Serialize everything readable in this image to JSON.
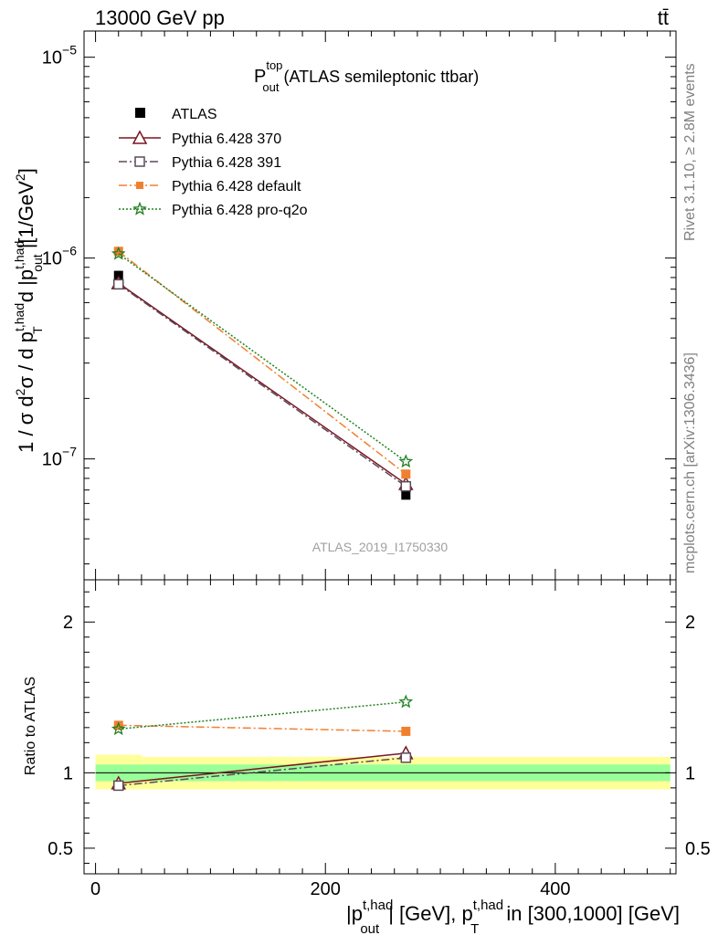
{
  "header": {
    "left": "13000 GeV pp",
    "right": "tt̄"
  },
  "plot_title": {
    "main": "P",
    "sup": "top",
    "sub": "out",
    "rest": " (ATLAS semileptonic ttbar)"
  },
  "side_text": {
    "rivet": "Rivet 3.1.10, ≥ 2.8M events",
    "mcplots": "mcplots.cern.ch [arXiv:1306.3436]"
  },
  "watermark": "ATLAS_2019_I1750330",
  "labels": {
    "y_main": "1 / σ d²σ / d p_T^{t,had} d |p_out^{t,had}|[1/GeV²]",
    "y_ratio": "Ratio to ATLAS",
    "x": "|p_out^{t,had}| [GeV], p_T^{t,had} in [300,1000] [GeV]"
  },
  "legend": {
    "atlas": "ATLAS",
    "s370": "Pythia 6.428 370",
    "s391": "Pythia 6.428 391",
    "sdefault": "Pythia 6.428 default",
    "sproq2o": "Pythia 6.428 pro-q2o"
  },
  "chart_data": [
    {
      "type": "line",
      "scale": "log",
      "x_range": [
        -10,
        505
      ],
      "y_range": [
        2.5e-08,
        1.35e-05
      ],
      "y_ticks": [
        {
          "value": 1e-07,
          "label_base": "10",
          "label_exp": "−7"
        },
        {
          "value": 1e-06,
          "label_base": "10",
          "label_exp": "−6"
        },
        {
          "value": 1e-05,
          "label_base": "10",
          "label_exp": "−5"
        }
      ],
      "series": [
        {
          "name": "ATLAS",
          "color": "#000000",
          "marker": "square-filled",
          "x": [
            20,
            270
          ],
          "y": [
            8.2e-07,
            6.6e-08
          ]
        },
        {
          "name": "Pythia 6.428 370",
          "color": "#7a1520",
          "marker": "triangle-open",
          "dash": "",
          "x": [
            20,
            270
          ],
          "y": [
            7.5e-07,
            7.5e-08
          ]
        },
        {
          "name": "Pythia 6.428 391",
          "color": "#5a4a5a",
          "marker": "square-open",
          "dash": "9,3,2,3",
          "x": [
            20,
            270
          ],
          "y": [
            7.4e-07,
            7.3e-08
          ]
        },
        {
          "name": "Pythia 6.428 default",
          "color": "#f08030",
          "marker": "square-filled",
          "dash": "9,3,2,3",
          "x": [
            20,
            270
          ],
          "y": [
            1.08e-06,
            8.4e-08
          ]
        },
        {
          "name": "Pythia 6.428 pro-q2o",
          "color": "#208020",
          "marker": "star",
          "dash": "2,2",
          "x": [
            20,
            270
          ],
          "y": [
            1.05e-06,
            9.7e-08
          ]
        }
      ]
    },
    {
      "type": "line",
      "scale": "linear",
      "x_range": [
        -10,
        505
      ],
      "x_ticks": [
        0,
        200,
        400
      ],
      "y_range": [
        0.33,
        2.28
      ],
      "y_ticks": [
        0.5,
        1,
        2
      ],
      "y_tick_labels": [
        "0.5",
        "1",
        "2"
      ],
      "bands": {
        "yellow": [
          {
            "x0": 0,
            "x1": 40,
            "lo": 0.89,
            "hi": 1.12
          },
          {
            "x0": 40,
            "x1": 500,
            "lo": 0.89,
            "hi": 1.105
          }
        ],
        "green": [
          {
            "x0": 0,
            "x1": 500,
            "lo": 0.945,
            "hi": 1.055
          }
        ]
      },
      "series": [
        {
          "name": "Pythia 6.428 370",
          "color": "#7a1520",
          "marker": "triangle-open",
          "dash": "",
          "x": [
            20,
            270
          ],
          "y": [
            0.93,
            1.13
          ]
        },
        {
          "name": "Pythia 6.428 391",
          "color": "#5a4a5a",
          "marker": "square-open",
          "dash": "9,3,2,3",
          "x": [
            20,
            270
          ],
          "y": [
            0.915,
            1.1
          ]
        },
        {
          "name": "Pythia 6.428 default",
          "color": "#f08030",
          "marker": "square-filled",
          "dash": "9,3,2,3",
          "x": [
            20,
            270
          ],
          "y": [
            1.315,
            1.275
          ]
        },
        {
          "name": "Pythia 6.428 pro-q2o",
          "color": "#208020",
          "marker": "star",
          "dash": "2,2",
          "x": [
            20,
            270
          ],
          "y": [
            1.29,
            1.47
          ]
        }
      ]
    }
  ]
}
